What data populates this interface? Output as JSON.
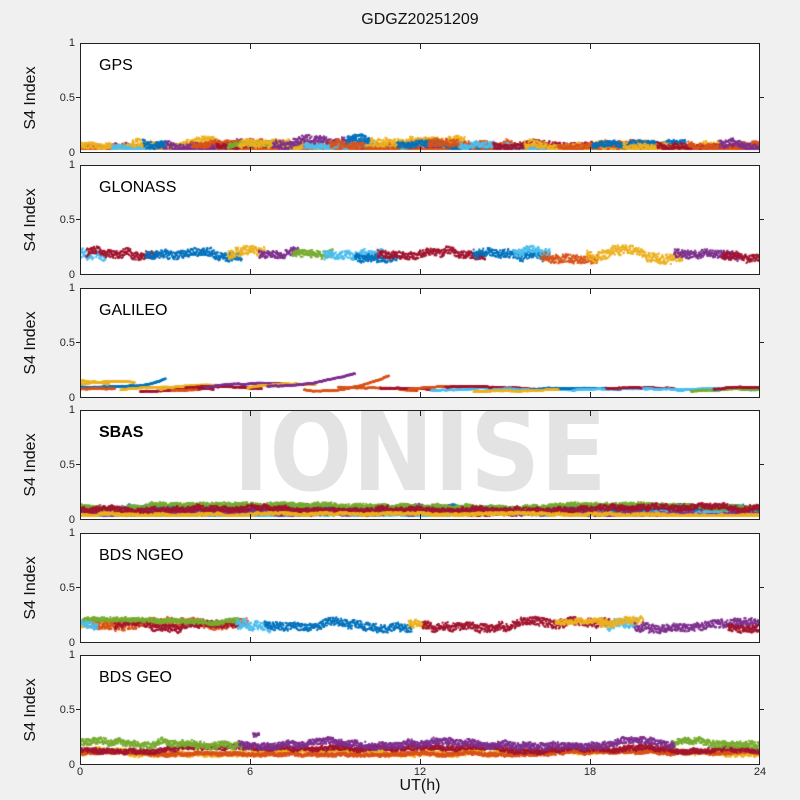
{
  "figure": {
    "bg": "#f0f0f0",
    "panel_bg": "#ffffff",
    "axis_color": "#222222"
  },
  "watermark": {
    "text": "IONISE",
    "color": "#e3e3e3"
  },
  "chart_data": {
    "type": "scatter",
    "title": "GDGZ20251209",
    "xlabel": "UT(h)",
    "ylabel": "S4 Index",
    "xlim": [
      0,
      24
    ],
    "ylim": [
      0,
      1
    ],
    "xticks": [
      0,
      6,
      12,
      18,
      24
    ],
    "xtick_labels": [
      "0",
      "6",
      "12",
      "18",
      "24"
    ],
    "yticks": [
      1,
      0.5,
      0
    ],
    "ytick_labels": [
      "1",
      "0.5",
      "0"
    ],
    "grid": false,
    "legend": "none",
    "palette": [
      "#0072BD",
      "#D95319",
      "#EDB120",
      "#7E2F8E",
      "#77AC30",
      "#4DBEEE",
      "#A2142F"
    ],
    "trace_format_noise": "[t_start_h, t_end_h, color_index, s4_base, s4_base, s4_spread]",
    "trace_format_line": "[t_start_h, t_end_h, color_index, s4_start, s4_end, arc_bulge]",
    "panels": [
      {
        "label": "GPS",
        "label_bold": false,
        "mode": "noise",
        "summary": "dense multi-satellite scintillation band, S4 ~0.0-0.15 all day",
        "traces": [
          [
            0,
            24,
            6,
            0.03,
            0.03,
            0.025
          ],
          [
            0,
            24,
            3,
            0.05,
            0.05,
            0.035
          ],
          [
            0,
            24,
            1,
            0.015,
            0.015,
            0.012
          ],
          [
            0,
            3.2,
            1,
            0.05,
            0.05,
            0.04
          ],
          [
            0,
            2.4,
            2,
            0.07,
            0.07,
            0.05
          ],
          [
            1.1,
            4.2,
            5,
            0.04,
            0.04,
            0.03
          ],
          [
            1.8,
            4.8,
            2,
            0.08,
            0.08,
            0.05
          ],
          [
            2.7,
            6.1,
            3,
            0.07,
            0.07,
            0.05
          ],
          [
            3.9,
            7.2,
            1,
            0.06,
            0.06,
            0.045
          ],
          [
            4.8,
            8.3,
            6,
            0.05,
            0.05,
            0.035
          ],
          [
            5.2,
            7.8,
            4,
            0.06,
            0.06,
            0.035
          ],
          [
            5.6,
            9.2,
            2,
            0.08,
            0.08,
            0.055
          ],
          [
            6.8,
            10.4,
            3,
            0.08,
            0.08,
            0.06
          ],
          [
            7.9,
            11.5,
            5,
            0.05,
            0.05,
            0.035
          ],
          [
            8.8,
            12.4,
            1,
            0.07,
            0.07,
            0.05
          ],
          [
            10.1,
            13.6,
            2,
            0.08,
            0.08,
            0.055
          ],
          [
            11.2,
            14.7,
            0,
            0.06,
            0.06,
            0.04
          ],
          [
            12.3,
            15.8,
            1,
            0.08,
            0.08,
            0.055
          ],
          [
            13.4,
            16.9,
            5,
            0.06,
            0.06,
            0.04
          ],
          [
            14.6,
            18.1,
            6,
            0.07,
            0.07,
            0.045
          ],
          [
            15.7,
            19.2,
            2,
            0.07,
            0.07,
            0.05
          ],
          [
            16.9,
            20.3,
            1,
            0.06,
            0.06,
            0.04
          ],
          [
            18.1,
            21.4,
            0,
            0.06,
            0.06,
            0.04
          ],
          [
            19.2,
            22.6,
            2,
            0.07,
            0.07,
            0.05
          ],
          [
            20.4,
            23.7,
            6,
            0.06,
            0.06,
            0.04
          ],
          [
            21.5,
            24,
            1,
            0.07,
            0.07,
            0.05
          ],
          [
            22.6,
            24,
            3,
            0.07,
            0.07,
            0.05
          ],
          [
            2.2,
            3.0,
            0,
            0.09,
            0.09,
            0.05
          ],
          [
            9.4,
            10.2,
            0,
            0.1,
            0.1,
            0.05
          ]
        ]
      },
      {
        "label": "GLONASS",
        "label_bold": false,
        "mode": "noise",
        "summary": "noisy band S4 ~0.12-0.26, satellite passes in color segments",
        "traces": [
          [
            0,
            0.9,
            5,
            0.19,
            0.19,
            0.06
          ],
          [
            0.2,
            2.7,
            6,
            0.19,
            0.19,
            0.055
          ],
          [
            2.3,
            5.7,
            0,
            0.17,
            0.17,
            0.055
          ],
          [
            5.2,
            6.5,
            2,
            0.18,
            0.18,
            0.06
          ],
          [
            6.3,
            7.7,
            3,
            0.185,
            0.185,
            0.05
          ],
          [
            7.5,
            8.9,
            4,
            0.18,
            0.18,
            0.05
          ],
          [
            8.6,
            10.7,
            5,
            0.18,
            0.18,
            0.055
          ],
          [
            9.7,
            11.2,
            0,
            0.17,
            0.17,
            0.05
          ],
          [
            10.5,
            14.3,
            6,
            0.19,
            0.19,
            0.05
          ],
          [
            13.9,
            16.5,
            0,
            0.19,
            0.19,
            0.055
          ],
          [
            15.3,
            16.6,
            5,
            0.2,
            0.2,
            0.05
          ],
          [
            16.3,
            18.3,
            1,
            0.17,
            0.17,
            0.055
          ],
          [
            17.9,
            21.3,
            2,
            0.18,
            0.18,
            0.065
          ],
          [
            21.0,
            23.3,
            3,
            0.19,
            0.19,
            0.055
          ],
          [
            22.7,
            24,
            6,
            0.17,
            0.17,
            0.05
          ]
        ]
      },
      {
        "label": "GALILEO",
        "label_bold": false,
        "mode": "line",
        "summary": "smooth thin satellite arcs, S4 ~0.05-0.2",
        "traces": [
          [
            0,
            1.9,
            2,
            0.12,
            0.13,
            0.01
          ],
          [
            0,
            2.3,
            0,
            0.095,
            0.1,
            0.005
          ],
          [
            1.6,
            3.0,
            0,
            0.1,
            0.175,
            -0.02
          ],
          [
            0,
            1.2,
            1,
            0.075,
            0.07,
            0
          ],
          [
            0,
            1.0,
            2,
            0.15,
            0.13,
            0
          ],
          [
            1.4,
            3.1,
            2,
            0.065,
            0.09,
            0.01
          ],
          [
            2.1,
            4.7,
            6,
            0.05,
            0.075,
            0.01
          ],
          [
            2.8,
            5.3,
            2,
            0.07,
            0.1,
            0.015
          ],
          [
            3.7,
            6.4,
            6,
            0.085,
            0.07,
            0.01
          ],
          [
            4.4,
            7.6,
            3,
            0.09,
            0.11,
            0.02
          ],
          [
            5.9,
            8.3,
            2,
            0.08,
            0.12,
            0.015
          ],
          [
            6.6,
            9.7,
            3,
            0.1,
            0.21,
            -0.03
          ],
          [
            7.9,
            10.9,
            1,
            0.065,
            0.2,
            -0.05
          ],
          [
            9.1,
            11.9,
            1,
            0.09,
            0.065,
            0.01
          ],
          [
            10.6,
            12.6,
            6,
            0.08,
            0.07,
            0.01
          ],
          [
            11.6,
            13.6,
            1,
            0.07,
            0.09,
            0.01
          ],
          [
            12.4,
            15.6,
            5,
            0.06,
            0.08,
            0.01
          ],
          [
            12.9,
            16.1,
            6,
            0.09,
            0.065,
            0.01
          ],
          [
            14.6,
            17.6,
            5,
            0.07,
            0.06,
            0.005
          ],
          [
            15.9,
            19.1,
            0,
            0.07,
            0.08,
            0.01
          ],
          [
            17.4,
            20.1,
            5,
            0.06,
            0.07,
            0.005
          ],
          [
            18.6,
            21.1,
            6,
            0.08,
            0.07,
            0.01
          ],
          [
            19.9,
            22.6,
            5,
            0.075,
            0.065,
            0.005
          ],
          [
            21.1,
            24,
            5,
            0.06,
            0.07,
            0.005
          ],
          [
            21.6,
            24,
            4,
            0.055,
            0.075,
            0.01
          ],
          [
            22.4,
            24,
            6,
            0.075,
            0.09,
            0.01
          ],
          [
            13.9,
            16.9,
            2,
            0.05,
            0.06,
            0.005
          ],
          [
            3.2,
            4.1,
            1,
            0.06,
            0.065,
            0
          ]
        ]
      },
      {
        "label": "SBAS",
        "label_bold": true,
        "mode": "noise",
        "summary": "thin dense band S4 ~0.03-0.15, dark-red dominant with blue/green/light-blue",
        "traces": [
          [
            0,
            24,
            6,
            0.08,
            0.08,
            0.045
          ],
          [
            0,
            24,
            5,
            0.05,
            0.05,
            0.03
          ],
          [
            0,
            9.5,
            0,
            0.1,
            0.1,
            0.045
          ],
          [
            9.5,
            24,
            0,
            0.09,
            0.09,
            0.035
          ],
          [
            0,
            24,
            4,
            0.115,
            0.115,
            0.03
          ],
          [
            0,
            24,
            3,
            0.05,
            0.05,
            0.03
          ],
          [
            0,
            24,
            6,
            0.1,
            0.1,
            0.04
          ],
          [
            0,
            24,
            2,
            0.04,
            0.04,
            0.02
          ]
        ]
      },
      {
        "label": "BDS NGEO",
        "label_bold": false,
        "mode": "noise",
        "summary": "band S4 ~0.08-0.25 in long color segments (orange, blue, dark red, purple)",
        "traces": [
          [
            0,
            1.5,
            2,
            0.16,
            0.16,
            0.055
          ],
          [
            0.4,
            5.9,
            1,
            0.16,
            0.16,
            0.055
          ],
          [
            1.2,
            5.6,
            6,
            0.15,
            0.15,
            0.05
          ],
          [
            0,
            5.6,
            4,
            0.19,
            0.19,
            0.03
          ],
          [
            5.5,
            6.7,
            5,
            0.16,
            0.16,
            0.06
          ],
          [
            6.5,
            11.7,
            0,
            0.16,
            0.16,
            0.055
          ],
          [
            11.6,
            12.3,
            2,
            0.17,
            0.17,
            0.05
          ],
          [
            12.1,
            18.7,
            6,
            0.16,
            0.16,
            0.055
          ],
          [
            16.8,
            18.6,
            2,
            0.185,
            0.185,
            0.035
          ],
          [
            18.6,
            19.7,
            5,
            0.17,
            0.17,
            0.06
          ],
          [
            18.4,
            19.9,
            2,
            0.18,
            0.18,
            0.05
          ],
          [
            19.6,
            24,
            3,
            0.15,
            0.15,
            0.055
          ],
          [
            22.9,
            24,
            6,
            0.15,
            0.15,
            0.05
          ],
          [
            0,
            0.6,
            5,
            0.17,
            0.17,
            0.05
          ]
        ]
      },
      {
        "label": "BDS GEO",
        "label_bold": false,
        "mode": "noise",
        "summary": "continuous band S4 ~0.07-0.25: green 0-5.5h & 21-24h, purple 5.5-21h, yellow/orange base",
        "traces": [
          [
            0,
            24,
            2,
            0.11,
            0.11,
            0.035
          ],
          [
            0,
            24,
            1,
            0.1,
            0.1,
            0.025
          ],
          [
            0,
            24,
            6,
            0.135,
            0.135,
            0.035
          ],
          [
            0,
            5.7,
            4,
            0.19,
            0.19,
            0.045
          ],
          [
            20.9,
            24,
            4,
            0.19,
            0.19,
            0.045
          ],
          [
            5.6,
            21,
            3,
            0.19,
            0.19,
            0.045
          ],
          [
            6.1,
            6.3,
            3,
            0.27,
            0.27,
            0.03
          ]
        ]
      }
    ]
  }
}
